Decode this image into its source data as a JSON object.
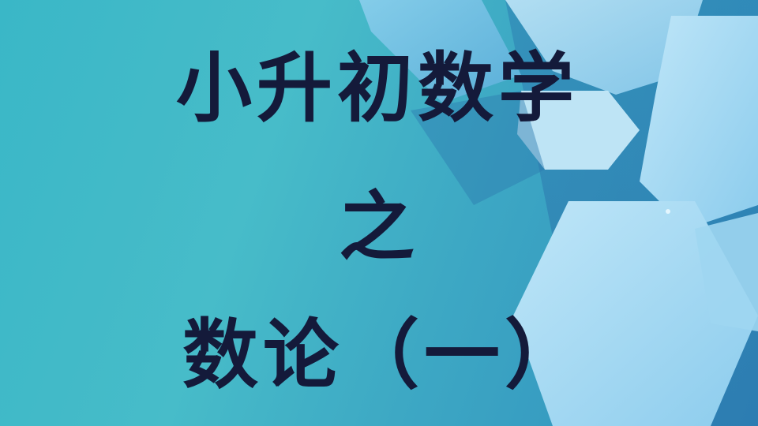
{
  "slide": {
    "title_line1": "小升初数学",
    "title_line2": "之",
    "title_line3": "数论（一）"
  },
  "colors": {
    "background_start": "#3ab7c7",
    "background_end": "#2f8dbd",
    "hexagon_light": "#a9dcf3",
    "hexagon_mid": "#7cc3e8",
    "title_text": "#141a3a"
  }
}
